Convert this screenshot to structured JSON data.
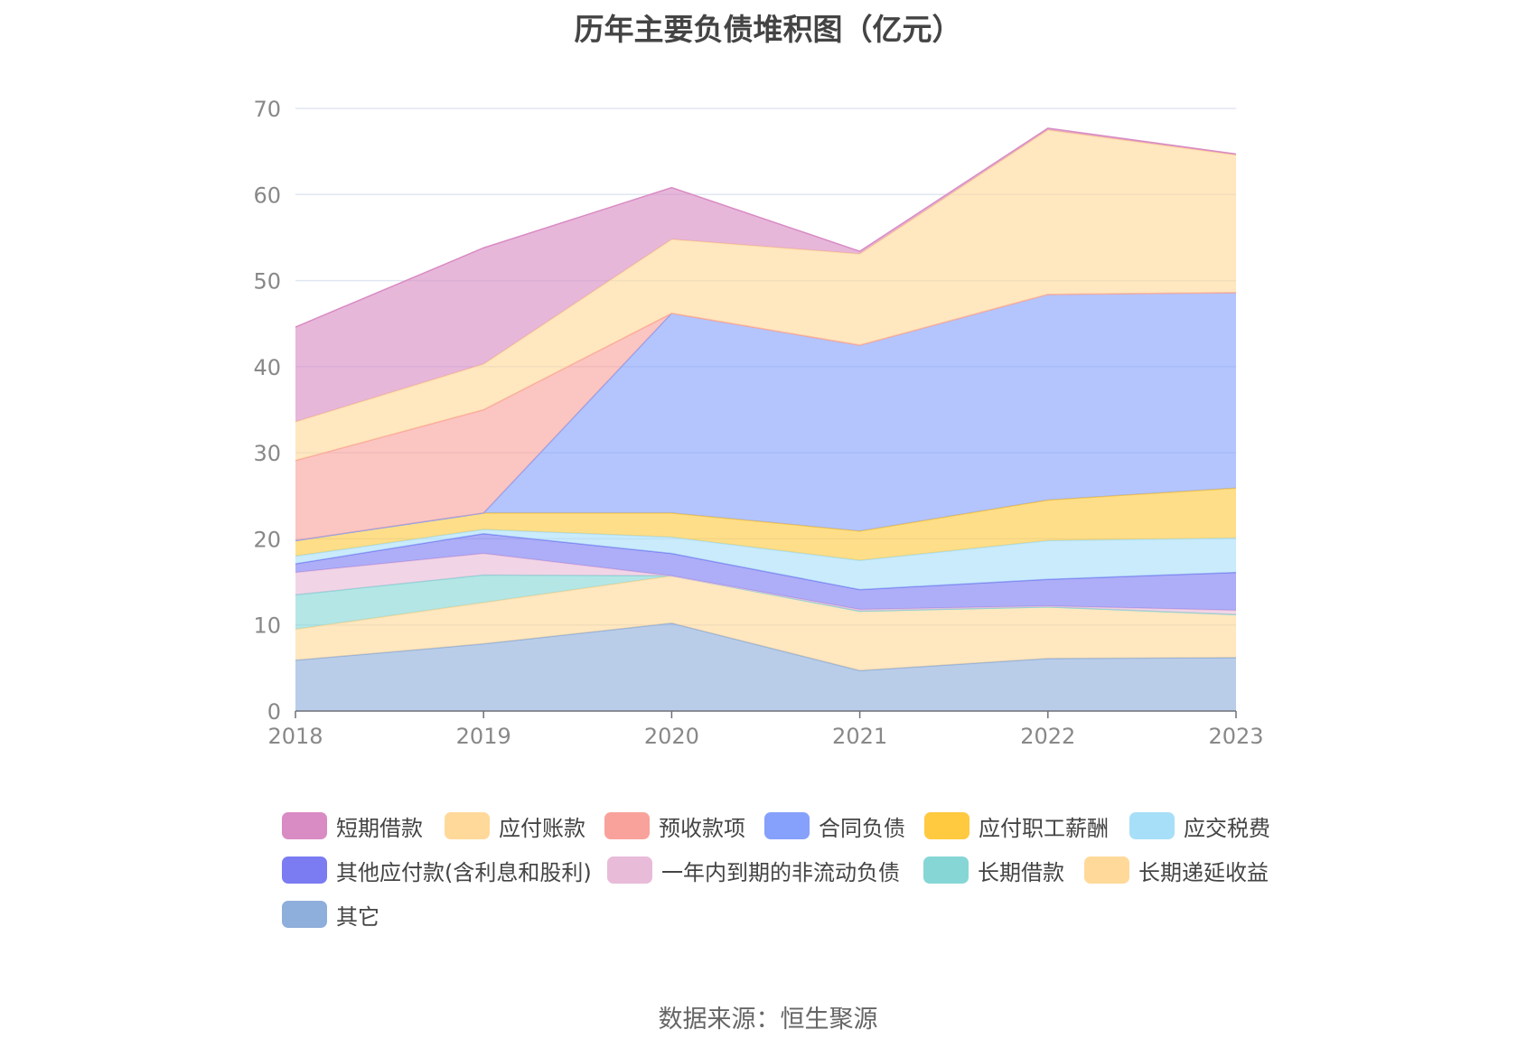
{
  "chart_data": {
    "type": "area",
    "stacked": true,
    "title": "历年主要负债堆积图（亿元）",
    "x": [
      "2018",
      "2019",
      "2020",
      "2021",
      "2022",
      "2023"
    ],
    "ylim": [
      0,
      70
    ],
    "yticks": [
      "0",
      "10",
      "20",
      "30",
      "40",
      "50",
      "60",
      "70"
    ],
    "grid": true,
    "legend_position": "bottom",
    "series": [
      {
        "name": "其它",
        "color": "#8eaedb",
        "values": [
          5.9,
          7.8,
          10.2,
          4.7,
          6.1,
          6.2
        ]
      },
      {
        "name": "长期递延收益",
        "color": "#ffd99a",
        "values": [
          3.6,
          4.8,
          5.5,
          6.9,
          6.0,
          5.0
        ]
      },
      {
        "name": "长期借款",
        "color": "#86d6d6",
        "values": [
          4.0,
          3.2,
          0.0,
          0.0,
          0.0,
          0.0
        ]
      },
      {
        "name": "一年内到期的非流动负债",
        "color": "#e8bbd9",
        "values": [
          2.6,
          2.5,
          0.0,
          0.2,
          0.1,
          0.5
        ]
      },
      {
        "name": "其他应付款(含利息和股利)",
        "color": "#7b7cf2",
        "values": [
          1.0,
          2.3,
          2.6,
          2.3,
          3.1,
          4.4
        ]
      },
      {
        "name": "应交税费",
        "color": "#a8dff8",
        "values": [
          0.9,
          0.5,
          1.9,
          3.4,
          4.5,
          4.0
        ]
      },
      {
        "name": "应付职工薪酬",
        "color": "#ffc940",
        "values": [
          1.8,
          1.9,
          2.8,
          3.4,
          4.7,
          5.8
        ]
      },
      {
        "name": "合同负债",
        "color": "#86a1fb",
        "values": [
          0.0,
          0.0,
          23.2,
          21.6,
          23.9,
          22.7
        ]
      },
      {
        "name": "预收款项",
        "color": "#f9a29b",
        "values": [
          9.3,
          12.0,
          0.0,
          0.0,
          0.0,
          0.0
        ]
      },
      {
        "name": "应付账款",
        "color": "#ffd99a",
        "values": [
          4.5,
          5.3,
          8.6,
          10.6,
          19.1,
          16.0
        ]
      },
      {
        "name": "短期借款",
        "color": "#d98bc3",
        "values": [
          11.0,
          13.5,
          6.0,
          0.3,
          0.2,
          0.1
        ]
      }
    ]
  },
  "legend_order": [
    "短期借款",
    "应付账款",
    "预收款项",
    "合同负债",
    "应付职工薪酬",
    "应交税费",
    "其他应付款(含利息和股利)",
    "一年内到期的非流动负债",
    "长期借款",
    "长期递延收益",
    "其它"
  ],
  "source": "数据来源：恒生聚源"
}
